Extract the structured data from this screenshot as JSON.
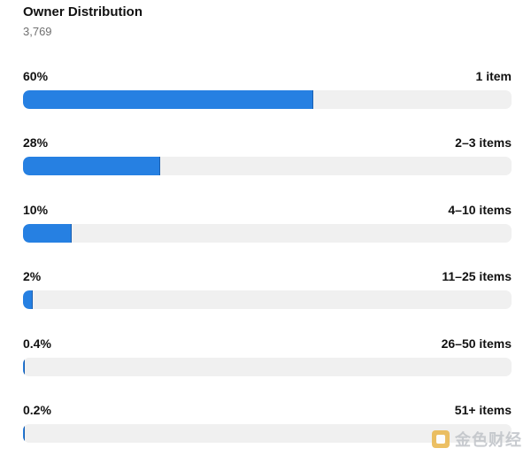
{
  "header": {
    "title": "Owner Distribution",
    "subtitle": "3,769"
  },
  "rows": [
    {
      "percent_label": "60%",
      "range_label": "1 item",
      "value": 0.595
    },
    {
      "percent_label": "28%",
      "range_label": "2–3 items",
      "value": 0.28
    },
    {
      "percent_label": "10%",
      "range_label": "4–10 items",
      "value": 0.1
    },
    {
      "percent_label": "2%",
      "range_label": "11–25 items",
      "value": 0.02
    },
    {
      "percent_label": "0.4%",
      "range_label": "26–50 items",
      "value": 0.004
    },
    {
      "percent_label": "0.2%",
      "range_label": "51+ items",
      "value": 0.002
    }
  ],
  "colors": {
    "bar_fill": "#2680e2",
    "track": "#f0f0f0"
  },
  "watermark": {
    "icon": "jinse-logo-icon",
    "text": "金色财经"
  }
}
